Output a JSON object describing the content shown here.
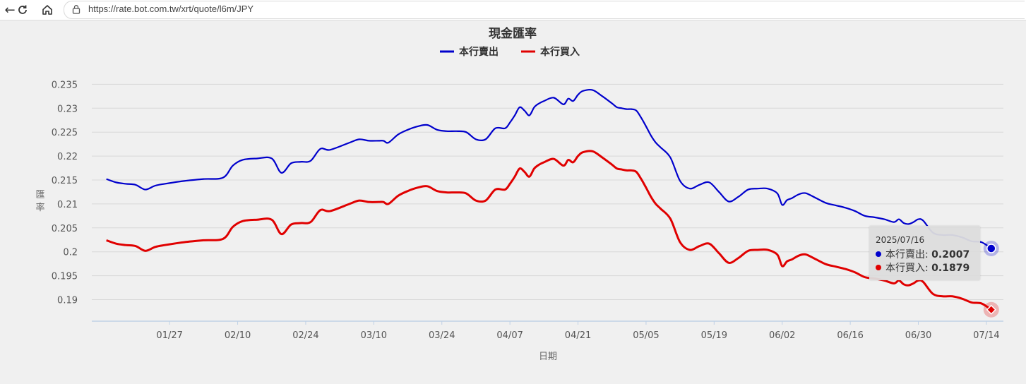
{
  "browser": {
    "url": "https://rate.bot.com.tw/xrt/quote/l6m/JPY"
  },
  "colors": {
    "sell": "#0000cc",
    "buy": "#e00000",
    "grid": "#d8d8d8",
    "axis": "#bfd1e6"
  },
  "tooltip": {
    "date": "2025/07/16",
    "rows": [
      {
        "label": "本行賣出:",
        "value": "0.2007",
        "color": "#0000cc"
      },
      {
        "label": "本行買入:",
        "value": "0.1879",
        "color": "#e00000"
      }
    ]
  },
  "chart_data": {
    "type": "line",
    "title": "現金匯率",
    "xlabel": "日期",
    "ylabel": "匯率",
    "legend_position": "top-center",
    "grid": true,
    "ylim": [
      0.1855,
      0.2355
    ],
    "yticks": [
      "0.235",
      "0.23",
      "0.225",
      "0.22",
      "0.215",
      "0.21",
      "0.205",
      "0.2",
      "0.195",
      "0.19"
    ],
    "xticks": [
      "01/27",
      "02/10",
      "02/24",
      "03/10",
      "03/24",
      "04/07",
      "04/21",
      "05/05",
      "05/19",
      "06/02",
      "06/16",
      "06/30",
      "07/14"
    ],
    "xtick_days": [
      13,
      27,
      41,
      55,
      69,
      83,
      97,
      111,
      125,
      139,
      153,
      167,
      181
    ],
    "xrange_days": [
      -3,
      184.5
    ],
    "x_note": "day offsets from 2025-01-14",
    "series": [
      {
        "name": "本行賣出",
        "color": "#0000cc",
        "x": [
          0,
          2,
          4,
          6,
          8,
          10,
          12,
          16,
          20,
          24,
          26,
          28,
          31,
          34,
          36,
          38,
          40,
          42,
          44,
          46,
          50,
          52,
          54,
          56,
          57,
          58,
          60,
          62,
          64,
          66,
          68,
          70,
          72,
          74,
          76,
          78,
          80,
          82,
          83,
          84,
          85,
          86,
          87,
          88,
          89,
          90,
          92,
          94,
          95,
          96,
          97,
          98,
          100,
          102,
          104,
          105,
          106,
          107,
          108,
          109,
          110,
          111,
          112,
          113,
          114,
          116,
          118,
          120,
          122,
          124,
          126,
          128,
          130,
          132,
          134,
          136,
          138,
          139,
          140,
          141,
          142,
          143,
          144,
          146,
          148,
          150,
          152,
          154,
          156,
          158,
          160,
          162,
          163,
          164,
          165,
          166,
          167,
          168,
          170,
          172,
          174,
          176,
          178,
          180,
          182
        ],
        "y": [
          0.2152,
          0.2145,
          0.2142,
          0.214,
          0.213,
          0.2138,
          0.2142,
          0.2148,
          0.2152,
          0.2155,
          0.218,
          0.2192,
          0.2195,
          0.2195,
          0.2165,
          0.2185,
          0.2188,
          0.219,
          0.2215,
          0.2213,
          0.2228,
          0.2235,
          0.2232,
          0.2232,
          0.2232,
          0.2228,
          0.2245,
          0.2255,
          0.2262,
          0.2265,
          0.2255,
          0.2252,
          0.2252,
          0.225,
          0.2235,
          0.2235,
          0.2258,
          0.2258,
          0.227,
          0.2285,
          0.2302,
          0.2295,
          0.2285,
          0.2302,
          0.231,
          0.2315,
          0.2322,
          0.2308,
          0.232,
          0.2315,
          0.2328,
          0.2336,
          0.2338,
          0.2325,
          0.231,
          0.2302,
          0.23,
          0.2298,
          0.2298,
          0.2295,
          0.228,
          0.2262,
          0.2243,
          0.2228,
          0.2218,
          0.2197,
          0.2148,
          0.2132,
          0.214,
          0.2145,
          0.2125,
          0.2105,
          0.2115,
          0.213,
          0.2132,
          0.2132,
          0.2122,
          0.2098,
          0.2108,
          0.2112,
          0.2118,
          0.2122,
          0.2122,
          0.2112,
          0.2102,
          0.2097,
          0.2092,
          0.2085,
          0.2075,
          0.2072,
          0.2068,
          0.2062,
          0.2068,
          0.206,
          0.2058,
          0.2062,
          0.2068,
          0.2065,
          0.204,
          0.2035,
          0.2035,
          0.203,
          0.2022,
          0.202,
          0.2007
        ]
      },
      {
        "name": "本行買入",
        "color": "#e00000",
        "x": [
          0,
          2,
          4,
          6,
          8,
          10,
          12,
          16,
          20,
          24,
          26,
          28,
          31,
          34,
          36,
          38,
          40,
          42,
          44,
          46,
          50,
          52,
          54,
          56,
          57,
          58,
          60,
          62,
          64,
          66,
          68,
          70,
          72,
          74,
          76,
          78,
          80,
          82,
          83,
          84,
          85,
          86,
          87,
          88,
          89,
          90,
          92,
          94,
          95,
          96,
          97,
          98,
          100,
          102,
          104,
          105,
          106,
          107,
          108,
          109,
          110,
          111,
          112,
          113,
          114,
          116,
          118,
          120,
          122,
          124,
          126,
          128,
          130,
          132,
          134,
          136,
          138,
          139,
          140,
          141,
          142,
          143,
          144,
          146,
          148,
          150,
          152,
          154,
          156,
          158,
          160,
          162,
          163,
          164,
          165,
          166,
          167,
          168,
          170,
          172,
          174,
          176,
          178,
          180,
          182
        ],
        "y": [
          0.2024,
          0.2017,
          0.2014,
          0.2012,
          0.2002,
          0.201,
          0.2014,
          0.202,
          0.2024,
          0.2027,
          0.2052,
          0.2064,
          0.2067,
          0.2067,
          0.2037,
          0.2057,
          0.206,
          0.2062,
          0.2087,
          0.2085,
          0.21,
          0.2107,
          0.2104,
          0.2104,
          0.2104,
          0.21,
          0.2117,
          0.2127,
          0.2134,
          0.2137,
          0.2127,
          0.2124,
          0.2124,
          0.2122,
          0.2107,
          0.2107,
          0.213,
          0.213,
          0.2142,
          0.2157,
          0.2174,
          0.2167,
          0.2157,
          0.2174,
          0.2182,
          0.2187,
          0.2194,
          0.218,
          0.2192,
          0.2187,
          0.22,
          0.2208,
          0.221,
          0.2197,
          0.2182,
          0.2174,
          0.2172,
          0.217,
          0.217,
          0.2167,
          0.2152,
          0.2134,
          0.2115,
          0.21,
          0.209,
          0.2069,
          0.202,
          0.2004,
          0.2012,
          0.2017,
          0.1997,
          0.1977,
          0.1987,
          0.2002,
          0.2004,
          0.2004,
          0.1994,
          0.197,
          0.198,
          0.1984,
          0.199,
          0.1994,
          0.1994,
          0.1984,
          0.1974,
          0.1969,
          0.1964,
          0.1957,
          0.1947,
          0.1944,
          0.194,
          0.1934,
          0.194,
          0.1932,
          0.193,
          0.1934,
          0.194,
          0.1937,
          0.1912,
          0.1907,
          0.1907,
          0.1902,
          0.1894,
          0.1892,
          0.1879
        ]
      }
    ]
  }
}
